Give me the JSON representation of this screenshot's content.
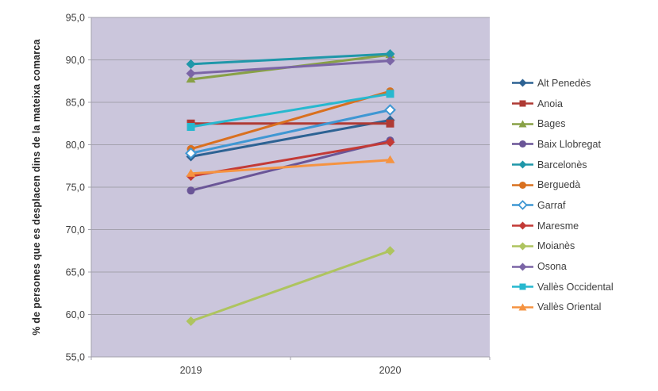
{
  "chart_data": {
    "type": "line",
    "title": "",
    "ylabel": "% de persones que es desplacen dins de la mateixa comarca",
    "xlabel": "",
    "categories": [
      "2019",
      "2020"
    ],
    "series": [
      {
        "name": "Alt Penedès",
        "values": [
          78.6,
          82.9
        ],
        "color": "#2D6293",
        "marker": "diamond"
      },
      {
        "name": "Anoia",
        "values": [
          82.5,
          82.5
        ],
        "color": "#AF3A34",
        "marker": "square"
      },
      {
        "name": "Bages",
        "values": [
          87.7,
          90.6
        ],
        "color": "#88A146",
        "marker": "triangle"
      },
      {
        "name": "Baix Llobregat",
        "values": [
          74.6,
          80.5
        ],
        "color": "#6A5597",
        "marker": "circle"
      },
      {
        "name": "Barcelonès",
        "values": [
          89.5,
          90.7
        ],
        "color": "#1F97A9",
        "marker": "diamond"
      },
      {
        "name": "Berguedà",
        "values": [
          79.5,
          86.3
        ],
        "color": "#D9701F",
        "marker": "circle"
      },
      {
        "name": "Garraf",
        "values": [
          79.0,
          84.1
        ],
        "color": "#3F97D3",
        "marker": "diamond-open"
      },
      {
        "name": "Maresme",
        "values": [
          76.3,
          80.3
        ],
        "color": "#C33A36",
        "marker": "diamond"
      },
      {
        "name": "Moianès",
        "values": [
          59.2,
          67.5
        ],
        "color": "#AEC45F",
        "marker": "diamond"
      },
      {
        "name": "Osona",
        "values": [
          88.4,
          89.9
        ],
        "color": "#7B65A6",
        "marker": "diamond"
      },
      {
        "name": "Vallès Occidental",
        "values": [
          82.1,
          86.0
        ],
        "color": "#27B8CF",
        "marker": "square"
      },
      {
        "name": "Vallès Oriental",
        "values": [
          76.6,
          78.2
        ],
        "color": "#F59341",
        "marker": "triangle"
      }
    ],
    "ylim": [
      55,
      95
    ],
    "yticks": [
      {
        "v": 95,
        "label": "95,0"
      },
      {
        "v": 90,
        "label": "90,0"
      },
      {
        "v": 85,
        "label": "85,0"
      },
      {
        "v": 80,
        "label": "80,0"
      },
      {
        "v": 75,
        "label": "75,0"
      },
      {
        "v": 70,
        "label": "70,0"
      },
      {
        "v": 65,
        "label": "65,0"
      },
      {
        "v": 60,
        "label": "60,0"
      },
      {
        "v": 55,
        "label": "55,0"
      }
    ],
    "grid": true,
    "legend_position": "right",
    "plot_bg": "#CBC6DC",
    "grid_color": "#A3A1AD",
    "axis_text_color": "#3f3f3f"
  }
}
